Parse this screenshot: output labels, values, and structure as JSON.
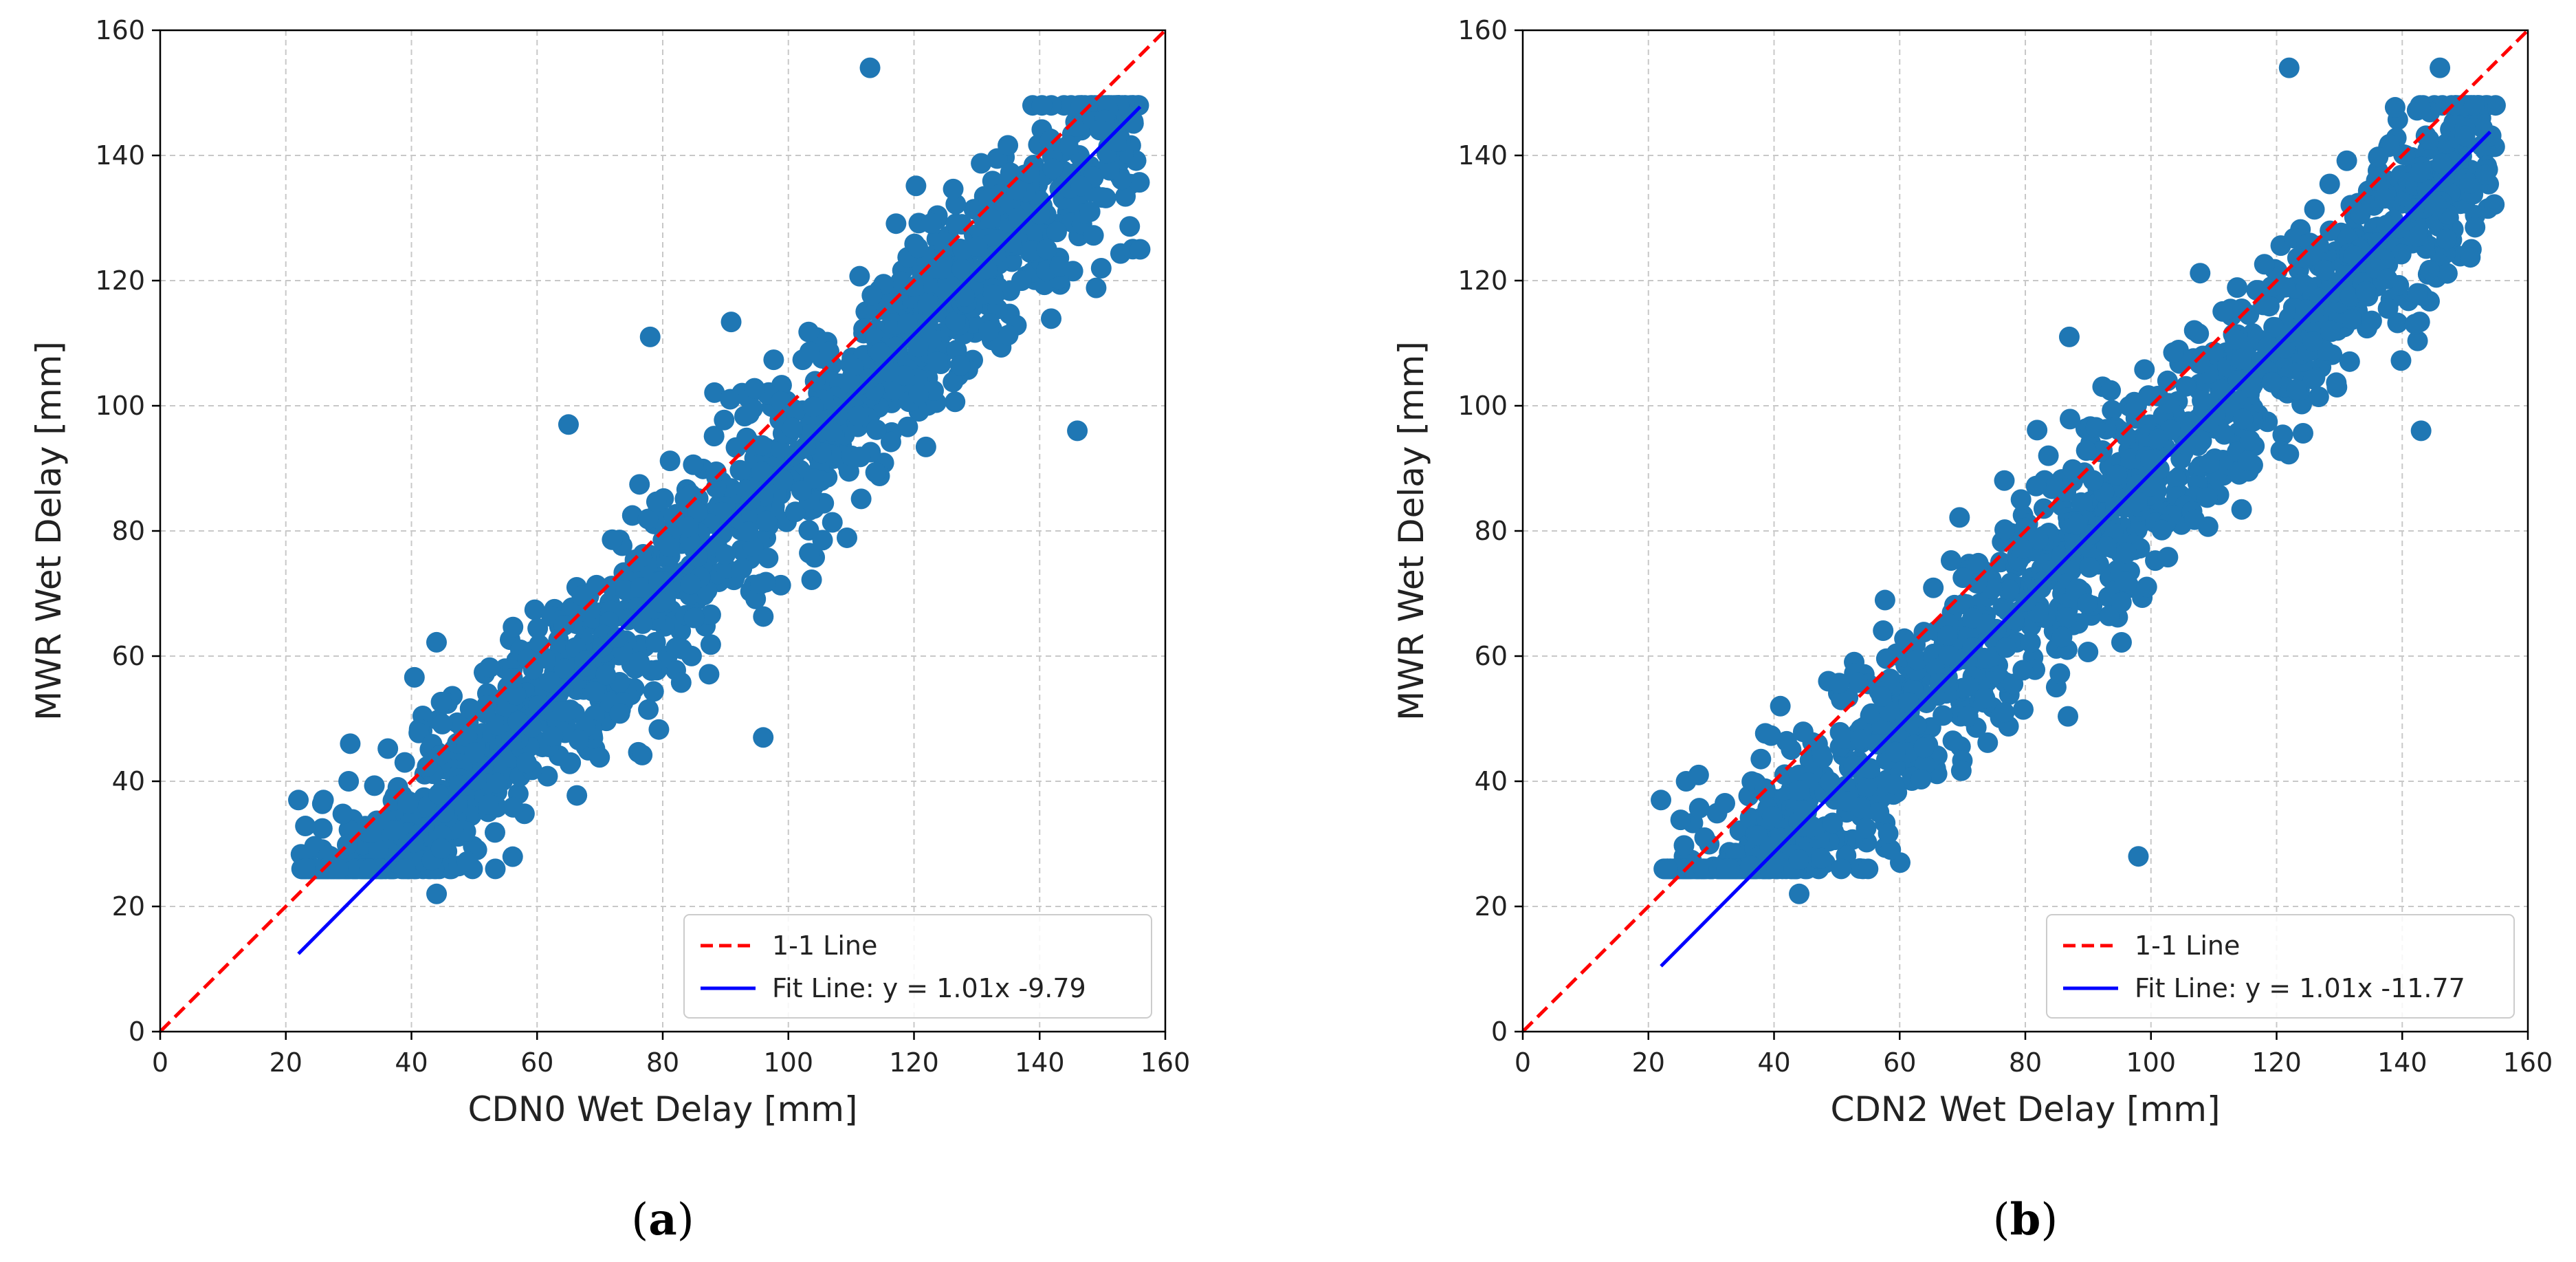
{
  "colors": {
    "points": "#1f77b4",
    "one_to_one": "#ff0000",
    "fit": "#0000ff",
    "grid": "#c8c8c8",
    "axes": "#000000"
  },
  "chart_data": [
    {
      "type": "scatter",
      "panel_label": "a",
      "xlabel": "CDN0 Wet Delay [mm]",
      "ylabel": "MWR Wet Delay [mm]",
      "xlim": [
        0,
        160
      ],
      "ylim": [
        0,
        160
      ],
      "xticks": [
        "0",
        "20",
        "40",
        "60",
        "80",
        "100",
        "120",
        "140",
        "160"
      ],
      "yticks": [
        "0",
        "20",
        "40",
        "60",
        "80",
        "100",
        "120",
        "140",
        "160"
      ],
      "grid": true,
      "legend_position": "lower-right",
      "series": [
        {
          "name": "1-1 Line",
          "kind": "line",
          "style": "dashed",
          "x": [
            0,
            160
          ],
          "y": [
            0,
            160
          ]
        },
        {
          "name": "Fit Line: y = 1.01x -9.79",
          "kind": "line",
          "style": "solid",
          "slope": 1.01,
          "intercept": -9.79,
          "x_range": [
            22,
            156
          ]
        },
        {
          "name": "observations",
          "kind": "scatter",
          "n_points": 1400,
          "x_range": [
            22,
            156
          ],
          "y_range": [
            22,
            154
          ],
          "slope": 1.01,
          "intercept": -9.79,
          "seed": 17,
          "outliers": [
            [
              113,
              154
            ],
            [
              156,
              125
            ],
            [
              146,
              96
            ],
            [
              78,
              111
            ],
            [
              65,
              97
            ],
            [
              96,
              47
            ],
            [
              22,
              37
            ],
            [
              26,
              37
            ],
            [
              30,
              40
            ],
            [
              44,
              22
            ]
          ]
        }
      ]
    },
    {
      "type": "scatter",
      "panel_label": "b",
      "xlabel": "CDN2 Wet Delay [mm]",
      "ylabel": "MWR Wet Delay [mm]",
      "xlim": [
        0,
        160
      ],
      "ylim": [
        0,
        160
      ],
      "xticks": [
        "0",
        "20",
        "40",
        "60",
        "80",
        "100",
        "120",
        "140",
        "160"
      ],
      "yticks": [
        "0",
        "20",
        "40",
        "60",
        "80",
        "100",
        "120",
        "140",
        "160"
      ],
      "grid": true,
      "legend_position": "lower-right",
      "series": [
        {
          "name": "1-1 Line",
          "kind": "line",
          "style": "dashed",
          "x": [
            0,
            160
          ],
          "y": [
            0,
            160
          ]
        },
        {
          "name": "Fit Line: y = 1.01x -11.77",
          "kind": "line",
          "style": "solid",
          "slope": 1.01,
          "intercept": -11.77,
          "x_range": [
            22,
            154
          ]
        },
        {
          "name": "observations",
          "kind": "scatter",
          "n_points": 1400,
          "x_range": [
            22,
            155
          ],
          "y_range": [
            22,
            154
          ],
          "slope": 1.01,
          "intercept": -11.77,
          "seed": 29,
          "outliers": [
            [
              122,
              154
            ],
            [
              146,
              154
            ],
            [
              143,
              96
            ],
            [
              98,
              28
            ],
            [
              41,
              52
            ],
            [
              22,
              37
            ],
            [
              26,
              40
            ],
            [
              28,
              41
            ],
            [
              44,
              22
            ],
            [
              87,
              111
            ]
          ]
        }
      ]
    }
  ]
}
